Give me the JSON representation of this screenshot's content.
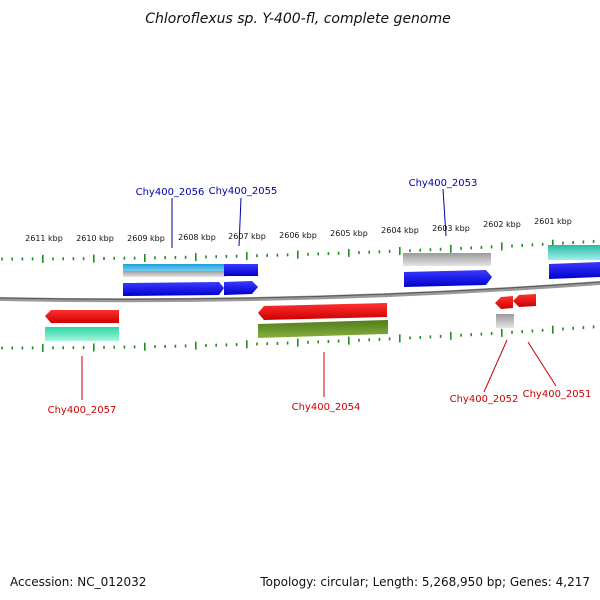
{
  "title": "Chloroflexus sp. Y-400-fl, complete genome",
  "footer": {
    "accession": "Accession: NC_012032",
    "summary": "Topology: circular; Length: 5,268,950 bp; Genes: 4,217"
  },
  "ruler": {
    "unit": "kbp",
    "ticks": [
      {
        "label": "2611 kbp"
      },
      {
        "label": "2610 kbp"
      },
      {
        "label": "2609 kbp"
      },
      {
        "label": "2608 kbp"
      },
      {
        "label": "2607 kbp"
      },
      {
        "label": "2606 kbp"
      },
      {
        "label": "2605 kbp"
      },
      {
        "label": "2604 kbp"
      },
      {
        "label": "2603 kbp"
      },
      {
        "label": "2602 kbp"
      },
      {
        "label": "2601 kbp"
      }
    ]
  },
  "colors": {
    "forward_gene": "#0000ee",
    "reverse_gene": "#ee0000",
    "forward_label": "#0000aa",
    "reverse_label": "#cc0000",
    "tick": "#228b22",
    "backbone": "#888888"
  },
  "genes": {
    "forward": [
      {
        "label": "Chy400_2056"
      },
      {
        "label": "Chy400_2055"
      },
      {
        "label": "Chy400_2053"
      }
    ],
    "reverse": [
      {
        "label": "Chy400_2057"
      },
      {
        "label": "Chy400_2054"
      },
      {
        "label": "Chy400_2052"
      },
      {
        "label": "Chy400_2051"
      }
    ]
  }
}
